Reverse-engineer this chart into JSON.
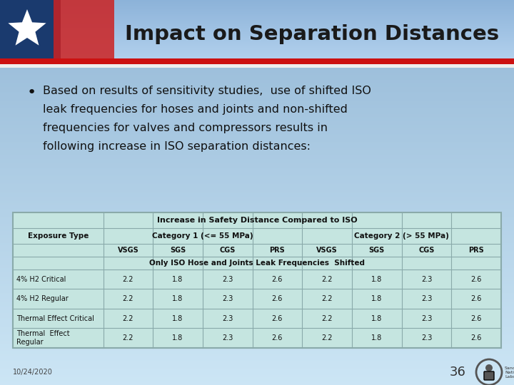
{
  "title": "Impact on Separation Distances",
  "bullet_lines": [
    "Based on results of sensitivity studies,  use of shifted ISO",
    "leak frequencies for hoses and joints and non-shifted",
    "frequencies for valves and compressors results in",
    "following increase in ISO separation distances:"
  ],
  "footer_date": "10/24/2020",
  "footer_page": "36",
  "table_main_header": "Increase in Safety Distance Compared to ISO",
  "cat1_header": "Category 1 (<= 55 MPa)",
  "cat2_header": "Category 2 (> 55 MPa)",
  "col_headers": [
    "VSGS",
    "SGS",
    "CGS",
    "PRS",
    "VSGS",
    "SGS",
    "CGS",
    "PRS"
  ],
  "exposure_type_label": "Exposure Type",
  "row_subheader": "Only ISO Hose and Joints Leak Frequencies  Shifted",
  "row_labels": [
    "4% H2 Critical",
    "4% H2 Regular",
    "Thermal Effect Critical",
    "Thermal  Effect\nRegular"
  ],
  "data_rows": [
    [
      "2.2",
      "1.8",
      "2.3",
      "2.6",
      "2.2",
      "1.8",
      "2.3",
      "2.6"
    ],
    [
      "2.2",
      "1.8",
      "2.3",
      "2.6",
      "2.2",
      "1.8",
      "2.3",
      "2.6"
    ],
    [
      "2.2",
      "1.8",
      "2.3",
      "2.6",
      "2.2",
      "1.8",
      "2.3",
      "2.6"
    ],
    [
      "2.2",
      "1.8",
      "2.3",
      "2.6",
      "2.2",
      "1.8",
      "2.3",
      "2.6"
    ]
  ],
  "bg_top_color": "#9abcd0",
  "bg_bottom_color": "#ccdde8",
  "table_bg": "#c5e5e0",
  "table_border_color": "#8aaaaa",
  "title_color": "#1a1a1a",
  "text_color": "#111111",
  "stripe_red": "#cc1111",
  "stripe_white": "#eeeeee",
  "flag_blue": "#1a3a6e",
  "flag_red": "#cc2222"
}
